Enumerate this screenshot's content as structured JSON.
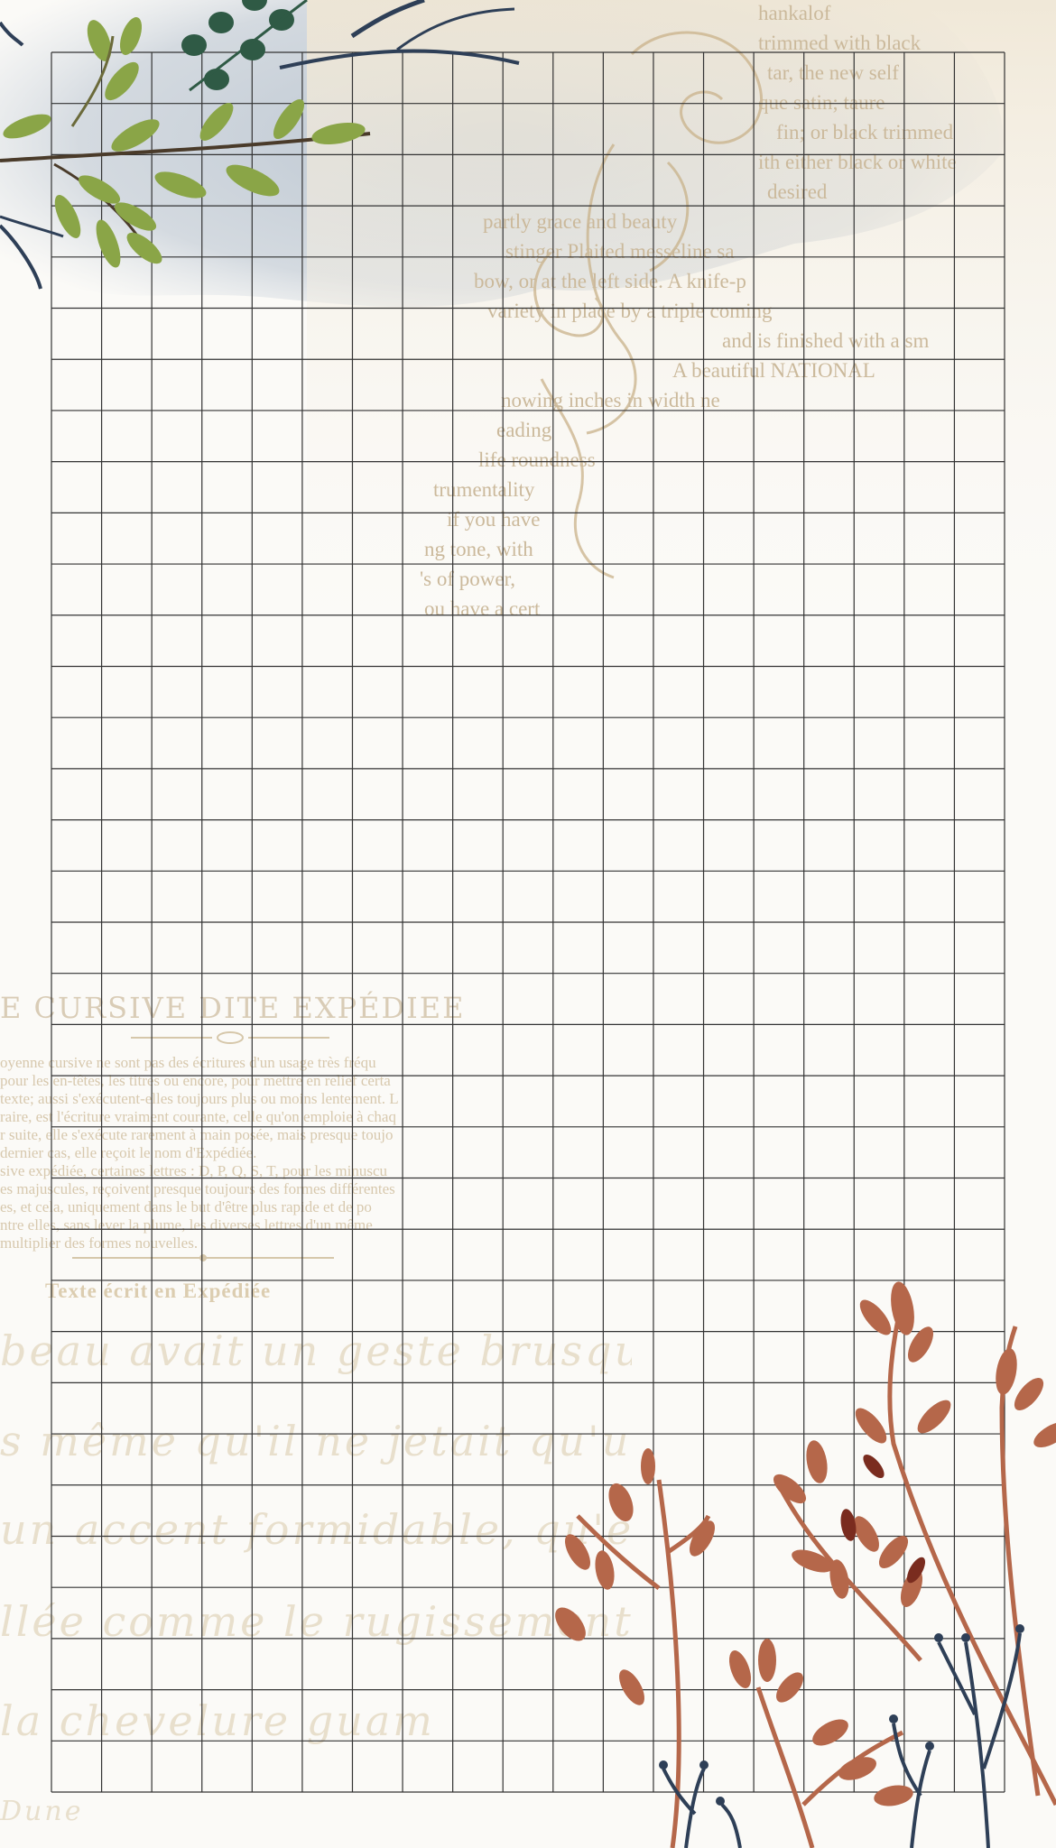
{
  "newspaper": {
    "lines": [
      "hankalof",
      "trimmed with black",
      "tar, the new self",
      "que satin; taure",
      "fin; or black trimmed",
      "ith either black or white",
      "desired",
      "partly   grace and beauty",
      "stinger        Plaited messeline sa",
      "bow, or     at the left side. A knife-p",
      "variety      in place by a triple coming",
      "and is finished with a sm",
      "A beautiful NATIONAL",
      "nowing         inches in width ne",
      "eading",
      "life roundness",
      "trumentality",
      "if you have",
      "ng tone, with",
      "'s of power,",
      "ou have a cert"
    ]
  },
  "article": {
    "heading": "E CURSIVE DITE EXPÉDIEE",
    "lines": [
      "oyenne cursive ne sont pas des écritures d'un usage très fréqu",
      "pour les en-têtes, les titres ou encore, pour mettre en relief certa",
      "texte; aussi s'exécutent-elles toujours plus ou moins lentement. L",
      "raire, est l'écriture vraiment courante, celle qu'on emploie à chaq",
      "r suite, elle s'exécute rarement à main posée, mais presque toujo",
      "dernier cas, elle reçoit le nom d'Expédiée.",
      "sive expédiée, certaines lettres : D, P, Q, S, T, pour les minuscu",
      "es majuscules, reçoivent presque toujours des formes différentes",
      "es, et cela, uniquement dans le but d'être plus rapide et de po",
      "ntre elles, sans lever la plume, les diverses lettres d'un même",
      "multiplier des formes nouvelles."
    ],
    "subheading": "Texte écrit en Expédiée",
    "script_lines": [
      "beau avait un geste brusque",
      "s même qu'il ne jetait qu'un",
      "un accent formidable, qu'en",
      "llée comme le rugissement",
      "la chevelure guam",
      "Dune"
    ]
  },
  "grid": {
    "columns": 19,
    "rows": 34,
    "line_color": "#333333"
  },
  "colors": {
    "paper": "#fbfaf7",
    "watercolor_blue": "#b8c3cf",
    "leaf_green": "#8aa547",
    "dark_green": "#2f5a45",
    "rust": "#b5674a",
    "navy": "#2e3f57",
    "sepia_text": "#cbb99b"
  }
}
